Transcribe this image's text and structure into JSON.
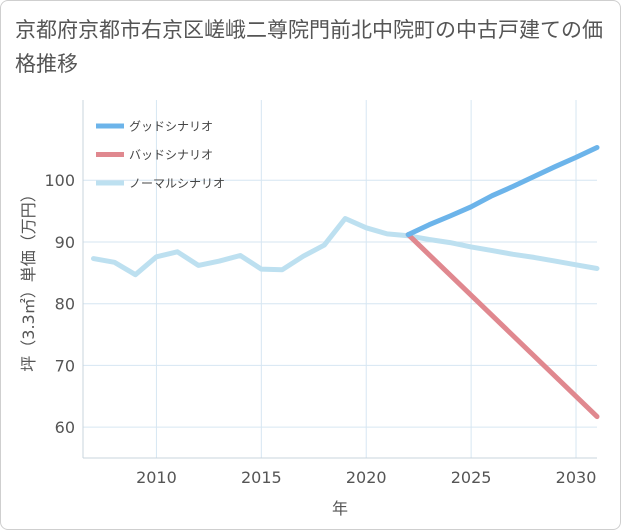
{
  "title": "京都府京都市右京区嵯峨二尊院門前北中院町の中古戸建ての価格推移",
  "chart_data": {
    "type": "line",
    "xlabel": "年",
    "ylabel": "坪（3.3㎡）単価（万円）",
    "xlim": [
      2006.5,
      2031
    ],
    "ylim": [
      55,
      113
    ],
    "xticks": [
      2010,
      2015,
      2020,
      2025,
      2030
    ],
    "yticks": [
      60,
      70,
      80,
      90,
      100
    ],
    "grid": true,
    "legend_position": "top-left",
    "series": [
      {
        "name": "グッドシナリオ",
        "color": "#6cb4ea",
        "x": [
          2022,
          2023,
          2024,
          2025,
          2026,
          2027,
          2028,
          2029,
          2030,
          2031
        ],
        "values": [
          91.2,
          92.8,
          94.2,
          95.7,
          97.5,
          99.0,
          100.6,
          102.2,
          103.7,
          105.3
        ]
      },
      {
        "name": "バッドシナリオ",
        "color": "#e0888f",
        "x": [
          2022,
          2031
        ],
        "values": [
          91.2,
          61.7
        ]
      },
      {
        "name": "ノーマルシナリオ",
        "color": "#bde0f0",
        "x": [
          2007,
          2008,
          2009,
          2010,
          2011,
          2012,
          2013,
          2014,
          2015,
          2016,
          2017,
          2018,
          2019,
          2020,
          2021,
          2022,
          2023,
          2024,
          2025,
          2026,
          2027,
          2028,
          2029,
          2030,
          2031
        ],
        "values": [
          87.3,
          86.7,
          84.7,
          87.6,
          88.4,
          86.2,
          86.9,
          87.8,
          85.6,
          85.5,
          87.7,
          89.5,
          93.8,
          92.3,
          91.3,
          91.0,
          90.4,
          89.9,
          89.2,
          88.6,
          88.0,
          87.5,
          86.9,
          86.3,
          85.7
        ]
      }
    ]
  }
}
